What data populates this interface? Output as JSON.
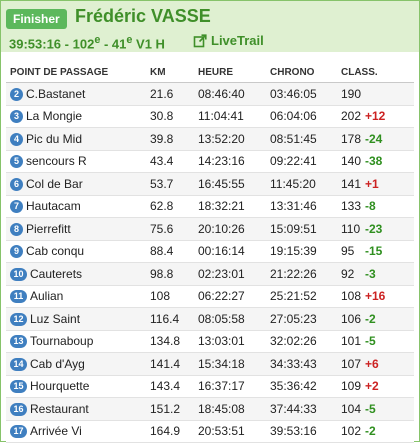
{
  "header": {
    "badge": "Finisher",
    "runner_name": "Frédéric VASSE",
    "finish_time": "39:53:16",
    "place": "102",
    "place_suffix": "e",
    "category_place": "41",
    "category_suffix": "e",
    "category": "V1 H",
    "livetrail_label": "LiveTrail"
  },
  "columns": {
    "name": "POINT DE PASSAGE",
    "km": "KM",
    "heure": "HEURE",
    "chrono": "CHRONO",
    "class": "CLASS."
  },
  "rows": [
    {
      "n": "2",
      "name": "C.Bastanet",
      "km": "21.6",
      "heure": "08:46:40",
      "chrono": "03:46:05",
      "rank": "190",
      "delta": "",
      "trend": ""
    },
    {
      "n": "3",
      "name": "La Mongie",
      "km": "30.8",
      "heure": "11:04:41",
      "chrono": "06:04:06",
      "rank": "202",
      "delta": "+12",
      "trend": "down"
    },
    {
      "n": "4",
      "name": "Pic du Mid",
      "km": "39.8",
      "heure": "13:52:20",
      "chrono": "08:51:45",
      "rank": "178",
      "delta": "-24",
      "trend": "up"
    },
    {
      "n": "5",
      "name": "sencours R",
      "km": "43.4",
      "heure": "14:23:16",
      "chrono": "09:22:41",
      "rank": "140",
      "delta": "-38",
      "trend": "up"
    },
    {
      "n": "6",
      "name": "Col de Bar",
      "km": "53.7",
      "heure": "16:45:55",
      "chrono": "11:45:20",
      "rank": "141",
      "delta": "+1",
      "trend": "down"
    },
    {
      "n": "7",
      "name": "Hautacam",
      "km": "62.8",
      "heure": "18:32:21",
      "chrono": "13:31:46",
      "rank": "133",
      "delta": "-8",
      "trend": "up"
    },
    {
      "n": "8",
      "name": "Pierrefitt",
      "km": "75.6",
      "heure": "20:10:26",
      "chrono": "15:09:51",
      "rank": "110",
      "delta": "-23",
      "trend": "up"
    },
    {
      "n": "9",
      "name": "Cab conqu",
      "km": "88.4",
      "heure": "00:16:14",
      "chrono": "19:15:39",
      "rank": "95",
      "delta": "-15",
      "trend": "up"
    },
    {
      "n": "10",
      "name": "Cauterets",
      "km": "98.8",
      "heure": "02:23:01",
      "chrono": "21:22:26",
      "rank": "92",
      "delta": "-3",
      "trend": "up"
    },
    {
      "n": "11",
      "name": "Aulian",
      "km": "108",
      "heure": "06:22:27",
      "chrono": "25:21:52",
      "rank": "108",
      "delta": "+16",
      "trend": "down"
    },
    {
      "n": "12",
      "name": "Luz Saint",
      "km": "116.4",
      "heure": "08:05:58",
      "chrono": "27:05:23",
      "rank": "106",
      "delta": "-2",
      "trend": "up"
    },
    {
      "n": "13",
      "name": "Tournaboup",
      "km": "134.8",
      "heure": "13:03:01",
      "chrono": "32:02:26",
      "rank": "101",
      "delta": "-5",
      "trend": "up"
    },
    {
      "n": "14",
      "name": "Cab d'Ayg",
      "km": "141.4",
      "heure": "15:34:18",
      "chrono": "34:33:43",
      "rank": "107",
      "delta": "+6",
      "trend": "down"
    },
    {
      "n": "15",
      "name": "Hourquette",
      "km": "143.4",
      "heure": "16:37:17",
      "chrono": "35:36:42",
      "rank": "109",
      "delta": "+2",
      "trend": "down"
    },
    {
      "n": "16",
      "name": "Restaurant",
      "km": "151.2",
      "heure": "18:45:08",
      "chrono": "37:44:33",
      "rank": "104",
      "delta": "-5",
      "trend": "up"
    },
    {
      "n": "17",
      "name": "Arrivée Vi",
      "km": "164.9",
      "heure": "20:53:51",
      "chrono": "39:53:16",
      "rank": "102",
      "delta": "-2",
      "trend": "up"
    }
  ],
  "colors": {
    "accent_green": "#3f8f29",
    "header_bg": "#dff0d1",
    "badge_bg": "#5cb85c",
    "number_badge": "#3f7fc0",
    "gain": "#2f8f1f",
    "loss": "#cc2222"
  }
}
